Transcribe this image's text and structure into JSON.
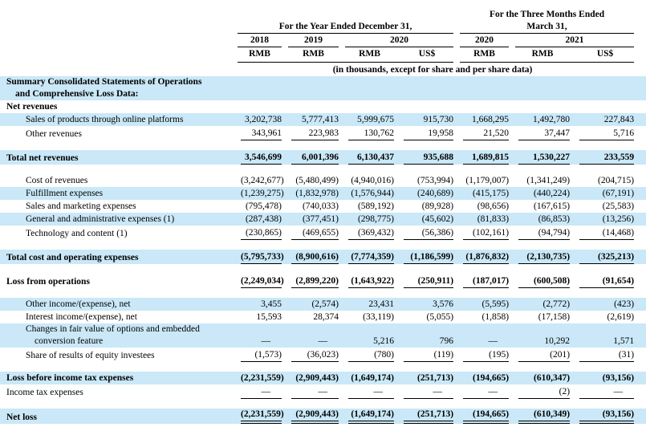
{
  "colors": {
    "highlight": "#cae8f7",
    "text": "#000000",
    "rule": "#000000"
  },
  "table": {
    "header": {
      "group_year": "For the Year Ended December 31,",
      "group_quarter_line1": "For the Three Months Ended",
      "group_quarter_line2": "March 31,",
      "years": [
        "2018",
        "2019",
        "2020",
        "2020",
        "2021"
      ],
      "currencies": [
        "RMB",
        "RMB",
        "RMB",
        "US$",
        "RMB",
        "RMB",
        "US$"
      ],
      "note": "(in thousands, except for share and per share data)"
    },
    "rows": [
      {
        "label": "Summary Consolidated Statements of Operations",
        "label2": "and Comprehensive Loss Data:",
        "indent": 0,
        "bold": true,
        "highlight": true,
        "underline": "none",
        "values": []
      },
      {
        "label": "Net revenues",
        "indent": 0,
        "bold": true,
        "highlight": false,
        "underline": "none",
        "values": []
      },
      {
        "label": "Sales of products through online platforms",
        "indent": 1,
        "bold": false,
        "highlight": true,
        "underline": "none",
        "values": [
          "3,202,738",
          "5,777,413",
          "5,999,675",
          "915,730",
          "1,668,295",
          "1,492,780",
          "227,843"
        ]
      },
      {
        "label": "Other revenues",
        "indent": 1,
        "bold": false,
        "highlight": false,
        "underline": "single",
        "values": [
          "343,961",
          "223,983",
          "130,762",
          "19,958",
          "21,520",
          "37,447",
          "5,716"
        ]
      },
      {
        "gap": true
      },
      {
        "label": "Total net revenues",
        "indent": 0,
        "bold": true,
        "highlight": true,
        "underline": "single",
        "values": [
          "3,546,699",
          "6,001,396",
          "6,130,437",
          "935,688",
          "1,689,815",
          "1,530,227",
          "233,559"
        ]
      },
      {
        "gap": true
      },
      {
        "label": "Cost of revenues",
        "indent": 1,
        "bold": false,
        "highlight": false,
        "underline": "none",
        "values": [
          "(3,242,677)",
          "(5,480,499)",
          "(4,940,016)",
          "(753,994)",
          "(1,179,007)",
          "(1,341,249)",
          "(204,715)"
        ]
      },
      {
        "label": "Fulfillment expenses",
        "indent": 1,
        "bold": false,
        "highlight": true,
        "underline": "none",
        "values": [
          "(1,239,275)",
          "(1,832,978)",
          "(1,576,944)",
          "(240,689)",
          "(415,175)",
          "(440,224)",
          "(67,191)"
        ]
      },
      {
        "label": "Sales and marketing expenses",
        "indent": 1,
        "bold": false,
        "highlight": false,
        "underline": "none",
        "values": [
          "(795,478)",
          "(740,033)",
          "(589,192)",
          "(89,928)",
          "(98,656)",
          "(167,615)",
          "(25,583)"
        ]
      },
      {
        "label": "General and administrative expenses (1)",
        "indent": 1,
        "bold": false,
        "highlight": true,
        "underline": "none",
        "values": [
          "(287,438)",
          "(377,451)",
          "(298,775)",
          "(45,602)",
          "(81,833)",
          "(86,853)",
          "(13,256)"
        ]
      },
      {
        "label": "Technology and content (1)",
        "indent": 1,
        "bold": false,
        "highlight": false,
        "underline": "single",
        "values": [
          "(230,865)",
          "(469,655)",
          "(369,432)",
          "(56,386)",
          "(102,161)",
          "(94,794)",
          "(14,468)"
        ]
      },
      {
        "gap": true
      },
      {
        "label": "Total cost and operating expenses",
        "indent": 0,
        "bold": true,
        "highlight": true,
        "underline": "single",
        "values": [
          "(5,795,733)",
          "(8,900,616)",
          "(7,774,359)",
          "(1,186,599)",
          "(1,876,832)",
          "(2,130,735)",
          "(325,213)"
        ]
      },
      {
        "gap": true
      },
      {
        "label": "Loss from operations",
        "indent": 0,
        "bold": true,
        "highlight": false,
        "underline": "single",
        "values": [
          "(2,249,034)",
          "(2,899,220)",
          "(1,643,922)",
          "(250,911)",
          "(187,017)",
          "(600,508)",
          "(91,654)"
        ]
      },
      {
        "gap": true
      },
      {
        "label": "Other income/(expense), net",
        "indent": 1,
        "bold": false,
        "highlight": true,
        "underline": "none",
        "values": [
          "3,455",
          "(2,574)",
          "23,431",
          "3,576",
          "(5,595)",
          "(2,772)",
          "(423)"
        ]
      },
      {
        "label": "Interest income/(expense), net",
        "indent": 1,
        "bold": false,
        "highlight": false,
        "underline": "none",
        "values": [
          "15,593",
          "28,374",
          "(33,119)",
          "(5,055)",
          "(1,858)",
          "(17,158)",
          "(2,619)"
        ]
      },
      {
        "label": "Changes in fair value of options and embedded",
        "label2": "conversion feature",
        "indent": 1,
        "bold": false,
        "highlight": true,
        "underline": "none",
        "values": [
          "—",
          "—",
          "5,216",
          "796",
          "—",
          "10,292",
          "1,571"
        ]
      },
      {
        "label": "Share of results of equity investees",
        "indent": 1,
        "bold": false,
        "highlight": false,
        "underline": "single",
        "values": [
          "(1,573)",
          "(36,023)",
          "(780)",
          "(119)",
          "(195)",
          "(201)",
          "(31)"
        ]
      },
      {
        "gap": true
      },
      {
        "label": "Loss before income tax expenses",
        "indent": 0,
        "bold": true,
        "highlight": true,
        "underline": "none",
        "values": [
          "(2,231,559)",
          "(2,909,443)",
          "(1,649,174)",
          "(251,713)",
          "(194,665)",
          "(610,347)",
          "(93,156)"
        ]
      },
      {
        "label": "Income tax expenses",
        "indent": 0,
        "bold": false,
        "highlight": false,
        "underline": "single",
        "values": [
          "—",
          "—",
          "—",
          "—",
          "—",
          "(2)",
          "—"
        ]
      },
      {
        "gap": true
      },
      {
        "label": "Net loss",
        "indent": 0,
        "bold": true,
        "highlight": true,
        "underline": "double",
        "values": [
          "(2,231,559)",
          "(2,909,443)",
          "(1,649,174)",
          "(251,713)",
          "(194,665)",
          "(610,349)",
          "(93,156)"
        ]
      }
    ]
  }
}
